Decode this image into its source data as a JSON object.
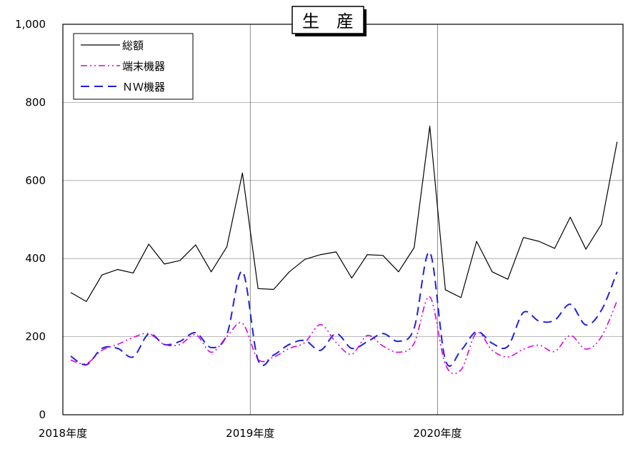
{
  "chart_data": {
    "type": "line",
    "title": "生　産",
    "ylim": [
      0,
      1000
    ],
    "y_ticks": [
      0,
      200,
      400,
      600,
      800,
      1000
    ],
    "y_tick_labels": [
      "0",
      "200",
      "400",
      "600",
      "800",
      "1,000"
    ],
    "x_ticks": [
      {
        "index": 0,
        "label": "2018年度"
      },
      {
        "index": 12,
        "label": "2019年度"
      },
      {
        "index": 24,
        "label": "2020年度"
      }
    ],
    "x_count": 36,
    "grid": true,
    "legend_position": "top-left",
    "series": [
      {
        "name": "総額",
        "color": "#000000",
        "style": "solid",
        "smooth": false,
        "values": [
          313,
          290,
          358,
          372,
          363,
          437,
          386,
          395,
          435,
          366,
          430,
          619,
          323,
          321,
          366,
          398,
          410,
          417,
          350,
          410,
          408,
          366,
          428,
          739,
          320,
          300,
          444,
          366,
          347,
          454,
          444,
          426,
          506,
          424,
          488,
          699
        ]
      },
      {
        "name": "端末機器",
        "color": "#e000e0",
        "style": "dashdot",
        "smooth": true,
        "values": [
          140,
          131,
          165,
          180,
          198,
          208,
          180,
          180,
          205,
          160,
          200,
          234,
          142,
          148,
          170,
          185,
          231,
          185,
          155,
          203,
          176,
          160,
          183,
          302,
          129,
          115,
          210,
          165,
          148,
          168,
          178,
          162,
          203,
          168,
          200,
          292
        ]
      },
      {
        "name": "ＮＷ機器",
        "color": "#2020e0",
        "style": "dashed",
        "smooth": true,
        "values": [
          150,
          128,
          170,
          170,
          148,
          207,
          180,
          188,
          210,
          172,
          205,
          367,
          140,
          153,
          180,
          190,
          165,
          208,
          170,
          187,
          208,
          188,
          222,
          416,
          140,
          165,
          213,
          183,
          175,
          262,
          240,
          242,
          283,
          230,
          268,
          366
        ]
      }
    ]
  }
}
